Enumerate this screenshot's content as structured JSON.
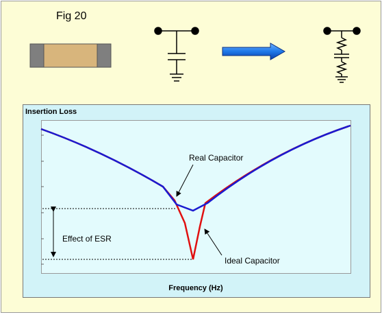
{
  "header": {
    "title": "Fig 20"
  },
  "plot": {
    "title": "Insertion Loss",
    "x_label": "Frequency (Hz)"
  },
  "annotations": {
    "real": "Real Capacitor",
    "ideal": "Ideal Capacitor",
    "esr": "Effect of ESR"
  }
}
